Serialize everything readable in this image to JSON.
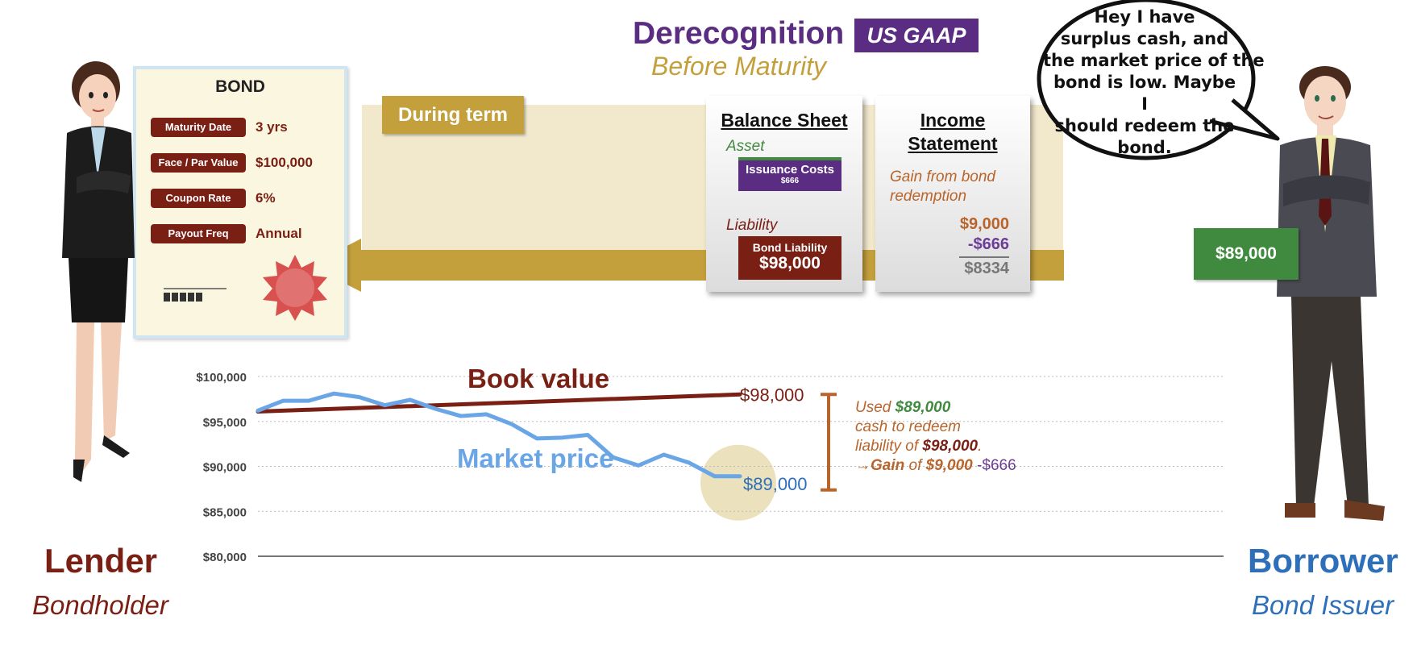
{
  "header": {
    "title": "Derecognition",
    "badge": "US GAAP",
    "subtitle": "Before Maturity"
  },
  "band_label": "During term",
  "bond_card": {
    "title": "BOND",
    "rows": [
      {
        "label": "Maturity Date",
        "value": "3 yrs"
      },
      {
        "label": "Face / Par Value",
        "value": "$100,000"
      },
      {
        "label": "Coupon Rate",
        "value": "6%"
      },
      {
        "label": "Payout Freq",
        "value": "Annual"
      }
    ]
  },
  "balance_sheet": {
    "title": "Balance Sheet",
    "asset_label": "Asset",
    "issuance_costs": {
      "label": "Issuance Costs",
      "value": "$666"
    },
    "liability_label": "Liability",
    "bond_liability": {
      "label": "Bond Liability",
      "value": "$98,000"
    }
  },
  "income_statement": {
    "title_line1": "Income",
    "title_line2": "Statement",
    "gain_line1": "Gain from bond",
    "gain_line2": "redemption",
    "amount1": "$9,000",
    "amount2": "-$666",
    "net": "$8334"
  },
  "speech": {
    "lines": [
      "Hey I have",
      "surplus cash, and",
      "the market price of the",
      "bond is low. Maybe I",
      "should redeem the",
      "bond."
    ]
  },
  "cash": "$89,000",
  "lender": {
    "name": "Lender",
    "role": "Bondholder"
  },
  "borrower": {
    "name": "Borrower",
    "role": "Bond Issuer"
  },
  "note": {
    "l1_a": "Used ",
    "l1_b": "$89,000",
    "l2": "cash to redeem",
    "l3_a": "liability of ",
    "l3_b": "$98,000",
    "l3_c": ".",
    "l4_arrow": "→",
    "l4_a": "Gain",
    "l4_b": " of ",
    "l4_c": "$9,000",
    "l4_d": " -$666"
  },
  "colors": {
    "accent_purple": "#5b2d82",
    "gold": "#c4a03c",
    "dark_red": "#7a1f14",
    "green": "#3f8a3f",
    "blue": "#2e6fba",
    "market_line": "#6aa6e6",
    "orange": "#b9642a"
  },
  "chart_data": {
    "type": "line",
    "ylim": [
      80000,
      100000
    ],
    "yticks": [
      "$100,000",
      "$95,000",
      "$90,000",
      "$85,000",
      "$80,000"
    ],
    "ytick_values": [
      100000,
      95000,
      90000,
      85000,
      80000
    ],
    "series": [
      {
        "name": "Book value",
        "x": [
          0,
          19
        ],
        "values": [
          96100,
          98000
        ],
        "end_label": "$98,000",
        "color": "#7a1f14"
      },
      {
        "name": "Market price",
        "x": [
          0,
          1,
          2,
          3,
          4,
          5,
          6,
          7,
          8,
          9,
          10,
          11,
          12,
          13,
          14,
          15,
          16,
          17,
          18,
          19
        ],
        "values": [
          96200,
          97300,
          97300,
          98100,
          97700,
          96800,
          97400,
          96400,
          95600,
          95800,
          94700,
          93100,
          93200,
          93500,
          91000,
          90100,
          91300,
          90400,
          88900,
          88900
        ],
        "end_label": "$89,000",
        "color": "#6aa6e6"
      }
    ]
  }
}
